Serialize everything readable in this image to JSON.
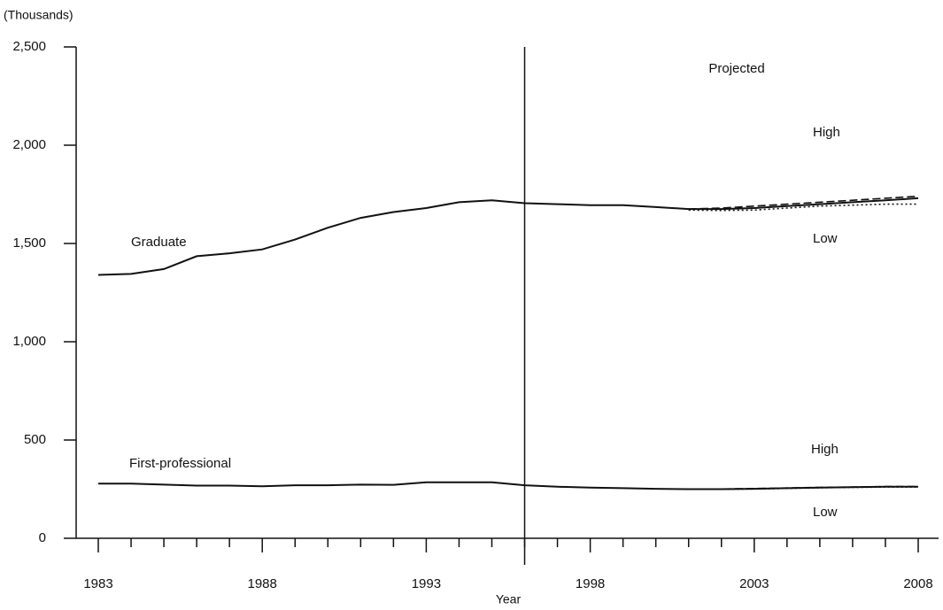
{
  "chart_data": {
    "type": "line",
    "y_label": "(Thousands)",
    "x_label": "Year",
    "annotations": [
      "Projected"
    ],
    "projection_start": 1996,
    "xlim": [
      1983,
      2008
    ],
    "xticks": [
      1983,
      1988,
      1993,
      1998,
      2003,
      2008
    ],
    "xminor": [
      1984,
      1985,
      1986,
      1987,
      1989,
      1990,
      1991,
      1992,
      1994,
      1995,
      1996,
      1997,
      1999,
      2000,
      2001,
      2002,
      2004,
      2005,
      2006,
      2007
    ],
    "ylim": [
      0,
      2500
    ],
    "yticks": [
      0,
      {
        "value": 500,
        "label": "500"
      },
      {
        "value": 1000,
        "label": "1,000"
      },
      {
        "value": 1500,
        "label": "1,500"
      },
      {
        "value": 2000,
        "label": "2,000"
      },
      {
        "value": 2500,
        "label": "2,500"
      }
    ],
    "x": [
      1983,
      1984,
      1985,
      1986,
      1987,
      1988,
      1989,
      1990,
      1991,
      1992,
      1993,
      1994,
      1995,
      1996,
      1997,
      1998,
      1999,
      2000,
      2001,
      2002,
      2003,
      2004,
      2005,
      2006,
      2007,
      2008
    ],
    "series": [
      {
        "name": "Graduate",
        "color": "#111111",
        "dash": "solid",
        "values": [
          1340,
          1345,
          1370,
          1435,
          1450,
          1470,
          1520,
          1580,
          1630,
          1660,
          1680,
          1710,
          1720,
          1705,
          1700,
          1695,
          1695,
          1685,
          1675,
          1675,
          1680,
          1690,
          1700,
          1710,
          1720,
          1730
        ]
      },
      {
        "name": "High",
        "color": "#111111",
        "dash": "dashed",
        "values": [
          null,
          null,
          null,
          null,
          null,
          null,
          null,
          null,
          null,
          null,
          null,
          null,
          null,
          null,
          null,
          null,
          null,
          null,
          1675,
          1680,
          1690,
          1700,
          1710,
          1720,
          1730,
          1740
        ]
      },
      {
        "name": "Low",
        "color": "#111111",
        "dash": "dotted",
        "values": [
          null,
          null,
          null,
          null,
          null,
          null,
          null,
          null,
          null,
          null,
          null,
          null,
          null,
          null,
          null,
          null,
          null,
          null,
          1670,
          1668,
          1670,
          1680,
          1690,
          1695,
          1700,
          1700
        ]
      },
      {
        "name": "First-professional",
        "color": "#111111",
        "dash": "solid",
        "values": [
          278,
          278,
          273,
          268,
          268,
          265,
          270,
          270,
          273,
          272,
          285,
          285,
          285,
          270,
          262,
          258,
          255,
          252,
          250,
          250,
          252,
          255,
          258,
          260,
          262,
          262
        ]
      },
      {
        "name": "High",
        "color": "#111111",
        "dash": "dashed",
        "values": [
          null,
          null,
          null,
          null,
          null,
          null,
          null,
          null,
          null,
          null,
          null,
          null,
          null,
          null,
          null,
          null,
          null,
          null,
          250,
          251,
          253,
          256,
          259,
          261,
          263,
          263
        ]
      },
      {
        "name": "Low",
        "color": "#111111",
        "dash": "dotted",
        "values": [
          null,
          null,
          null,
          null,
          null,
          null,
          null,
          null,
          null,
          null,
          null,
          null,
          null,
          null,
          null,
          null,
          null,
          null,
          250,
          250,
          251,
          254,
          257,
          259,
          261,
          261
        ]
      }
    ]
  }
}
